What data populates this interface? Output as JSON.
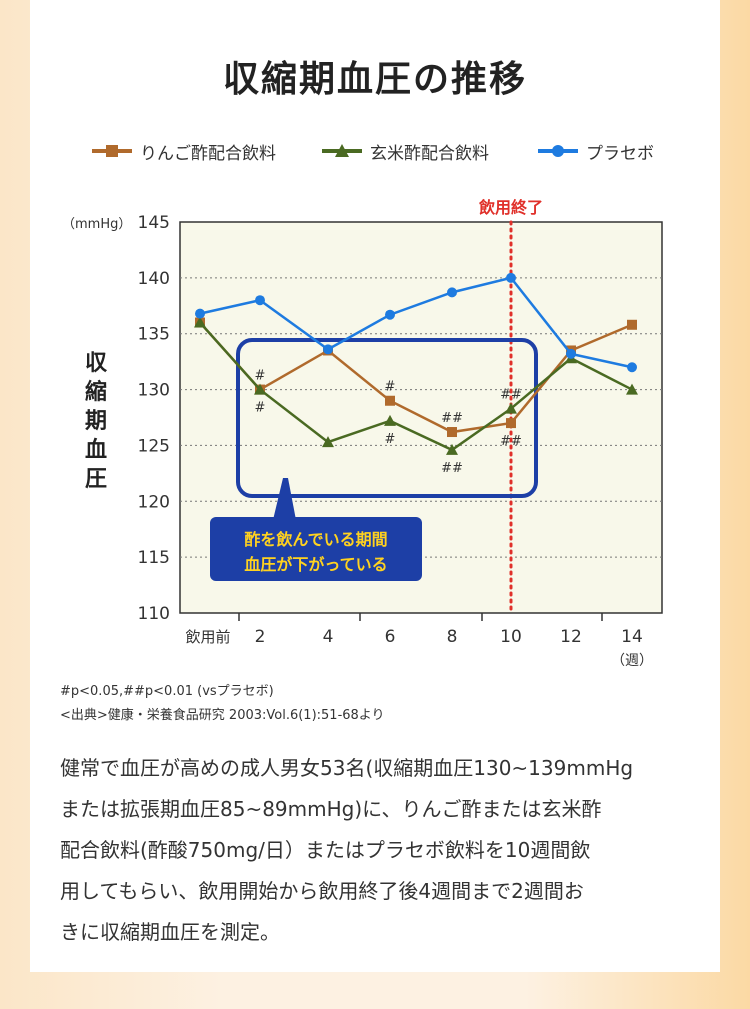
{
  "title": "収縮期血圧の推移",
  "legend": [
    {
      "name": "りんご酢配合飲料",
      "color": "#b06a2c",
      "marker": "square"
    },
    {
      "name": "玄米酢配合飲料",
      "color": "#4a6a22",
      "marker": "triangle"
    },
    {
      "name": "プラセボ",
      "color": "#1e7be0",
      "marker": "circle"
    }
  ],
  "chart_data": {
    "type": "line",
    "ylabel": "収縮期血圧",
    "yunit": "（mmHg）",
    "ylim": [
      110,
      145
    ],
    "yticks": [
      110,
      115,
      120,
      125,
      130,
      135,
      140,
      145
    ],
    "xticks": [
      "飲用前",
      "2",
      "4",
      "6",
      "8",
      "10",
      "12",
      "14"
    ],
    "xunit": "（週）",
    "x": [
      0,
      2,
      4,
      6,
      8,
      10,
      12,
      14
    ],
    "series": [
      {
        "name": "りんご酢配合飲料",
        "color": "#b06a2c",
        "marker": "square",
        "values": [
          136,
          130,
          133.5,
          129,
          126.2,
          127,
          133.5,
          135.8
        ]
      },
      {
        "name": "玄米酢配合飲料",
        "color": "#4a6a22",
        "marker": "triangle",
        "values": [
          136,
          130,
          125.3,
          127.2,
          124.6,
          128.3,
          132.8,
          130
        ]
      },
      {
        "name": "プラセボ",
        "color": "#1e7be0",
        "marker": "circle",
        "values": [
          136.8,
          138,
          133.6,
          136.7,
          138.7,
          140,
          133.2,
          132
        ]
      }
    ],
    "end_line": {
      "x": 10,
      "label": "飲用終了",
      "color": "#e0302a"
    },
    "significance": [
      {
        "x": 2,
        "series": "りんご酢配合飲料",
        "position": "above",
        "label": "#"
      },
      {
        "x": 2,
        "series": "玄米酢配合飲料",
        "position": "below",
        "label": "#"
      },
      {
        "x": 6,
        "series": "りんご酢配合飲料",
        "position": "above",
        "label": "#"
      },
      {
        "x": 6,
        "series": "玄米酢配合飲料",
        "position": "below",
        "label": "#"
      },
      {
        "x": 8,
        "series": "りんご酢配合飲料",
        "position": "above",
        "label": "##"
      },
      {
        "x": 8,
        "series": "玄米酢配合飲料",
        "position": "below",
        "label": "##"
      },
      {
        "x": 10,
        "series": "玄米酢配合飲料",
        "position": "above",
        "label": "##"
      },
      {
        "x": 10,
        "series": "りんご酢配合飲料",
        "position": "below",
        "label": "##"
      }
    ],
    "callout": [
      "酢を飲んでいる期間",
      "血圧が下がっている"
    ]
  },
  "notes": {
    "significance": "#p<0.05,##p<0.01 (vsプラセボ)",
    "source": "<出典>健康・栄養食品研究 2003:Vol.6(1):51-68より"
  },
  "body": [
    "健常で血圧が高めの成人男女53名(収縮期血圧130~139mmHg",
    "または拡張期血圧85~89mmHg)に、りんご酢または玄米酢",
    "配合飲料(酢酸750mg/日）またはプラセボ飲料を10週間飲",
    "用してもらい、飲用開始から飲用終了後4週間まで2週間お",
    "きに収縮期血圧を測定。"
  ]
}
